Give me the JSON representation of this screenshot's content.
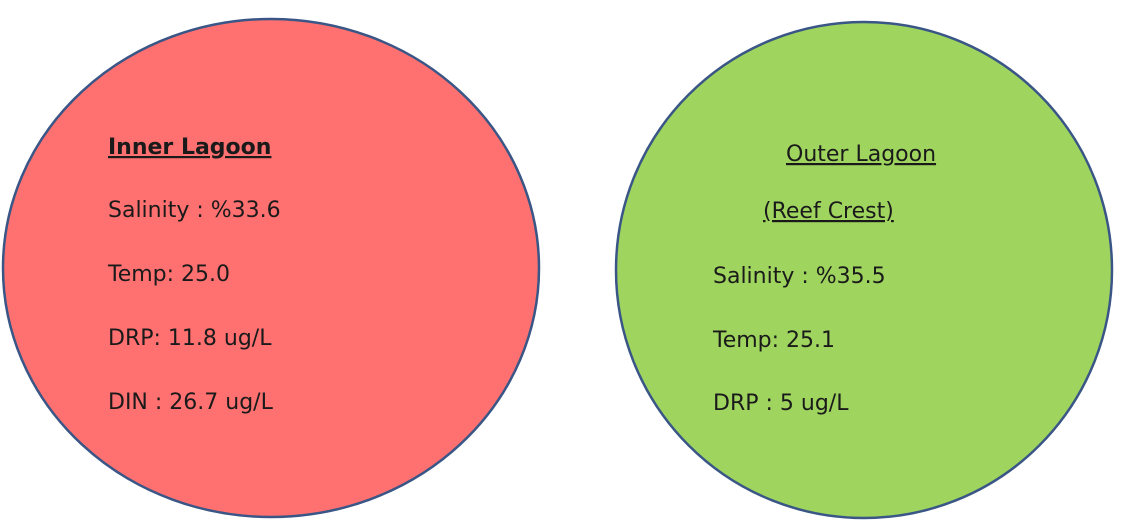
{
  "circles": [
    {
      "title": [
        "Inner Lagoon"
      ],
      "lines": [
        "Salinity : %33.6",
        "Temp: 25.0",
        "DRP: 11.8 ug/L",
        "DIN : 26.7 ug/L"
      ]
    },
    {
      "title": [
        "Outer Lagoon",
        "(Reef Crest)"
      ],
      "lines": [
        "Salinity : %35.5",
        "Temp: 25.1",
        "DRP : 5 ug/L"
      ]
    }
  ]
}
